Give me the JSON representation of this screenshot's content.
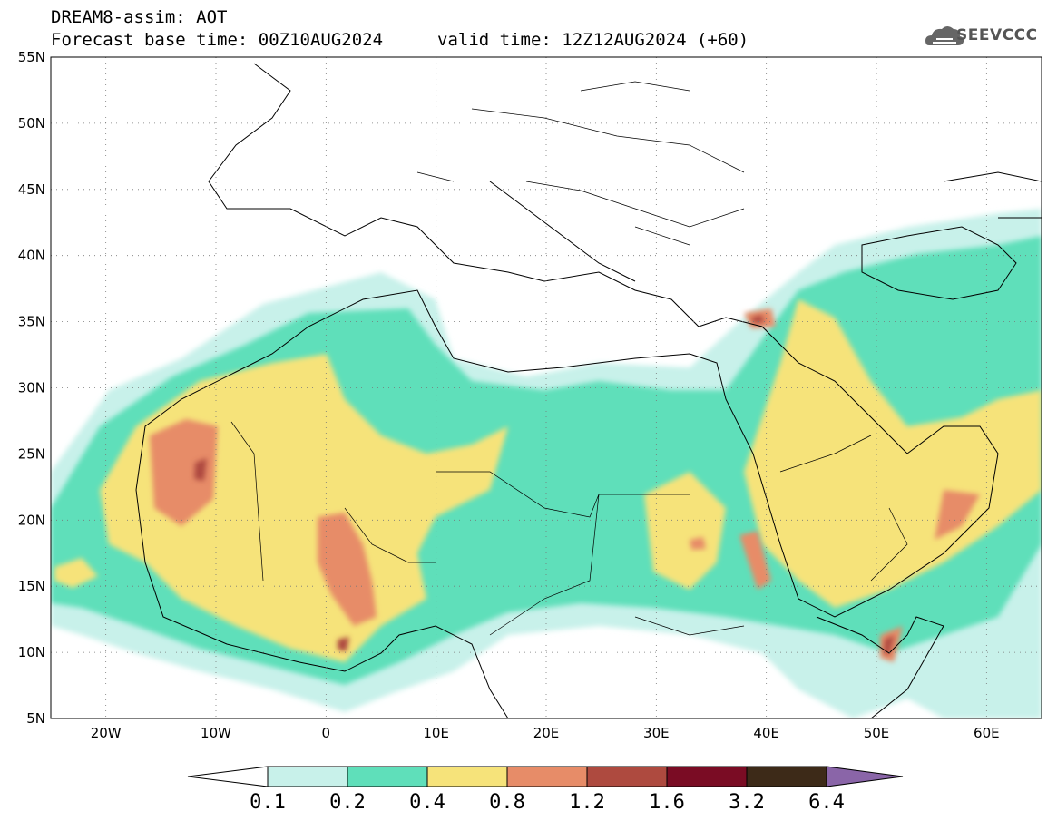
{
  "header": {
    "line1": "DREAM8-assim: AOT",
    "line2": "Forecast base time: 00Z10AUG2024",
    "valid": "valid time: 12Z12AUG2024 (+60)"
  },
  "logo": {
    "text": "SEEVCCC",
    "icon": "cloud-icon"
  },
  "axes": {
    "lon_ticks": [
      "20W",
      "10W",
      "0",
      "10E",
      "20E",
      "30E",
      "40E",
      "50E",
      "60E"
    ],
    "lat_ticks": [
      "55N",
      "50N",
      "45N",
      "40N",
      "35N",
      "30N",
      "25N",
      "20N",
      "15N",
      "10N",
      "5N"
    ],
    "lon_range": [
      -25,
      65
    ],
    "lat_range": [
      5,
      55
    ]
  },
  "colorbar": {
    "labels": [
      "0.1",
      "0.2",
      "0.4",
      "0.8",
      "1.2",
      "1.6",
      "3.2",
      "6.4"
    ],
    "colors": [
      "#ffffff",
      "#c8f1ea",
      "#5fdfba",
      "#f6e37a",
      "#e78c68",
      "#ae4a3f",
      "#7a0c24",
      "#3d2a18",
      "#8a65a8"
    ]
  },
  "chart_data": {
    "type": "heatmap",
    "variable": "AOT",
    "levels": [
      0.1,
      0.2,
      0.4,
      0.8,
      1.2,
      1.6,
      3.2,
      6.4
    ],
    "lon_range": [
      -25,
      65
    ],
    "lat_range": [
      5,
      55
    ]
  }
}
